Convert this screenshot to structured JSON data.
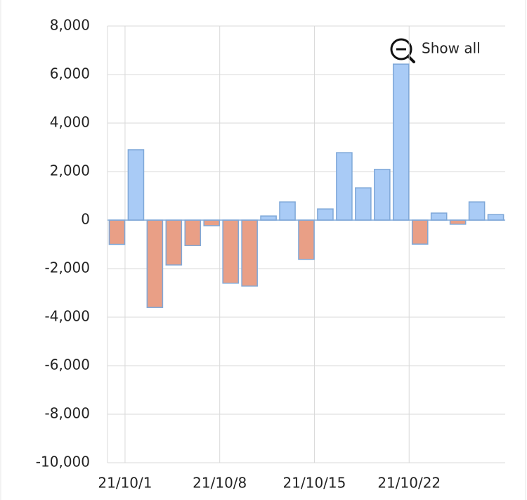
{
  "chart_data": {
    "type": "bar",
    "categories": [
      null,
      "21/10/1",
      null,
      null,
      null,
      null,
      "21/10/8",
      null,
      null,
      null,
      null,
      "21/10/15",
      null,
      null,
      null,
      null,
      "21/10/22",
      null,
      null,
      null,
      null
    ],
    "values": [
      -1000,
      2900,
      -3600,
      -1850,
      -1050,
      -230,
      -2600,
      -2720,
      170,
      750,
      -1620,
      460,
      2780,
      1330,
      2090,
      6430,
      -990,
      290,
      -170,
      750,
      230
    ],
    "positive_color": "#a9cbf6",
    "negative_color": "#e99f86",
    "border_color": "#7fa8d8",
    "ylim": [
      -10000,
      8000
    ],
    "yticks": [
      {
        "value": -10000,
        "label": "-10,000"
      },
      {
        "value": -8000,
        "label": "-8,000"
      },
      {
        "value": -6000,
        "label": "-6,000"
      },
      {
        "value": -4000,
        "label": "-4,000"
      },
      {
        "value": -2000,
        "label": "-2,000"
      },
      0,
      {
        "value": 2000,
        "label": "2,000"
      },
      {
        "value": 4000,
        "label": "4,000"
      },
      {
        "value": 6000,
        "label": "6,000"
      },
      {
        "value": 8000,
        "label": "8,000"
      }
    ],
    "grid": true,
    "zoom_button": "Show all"
  }
}
